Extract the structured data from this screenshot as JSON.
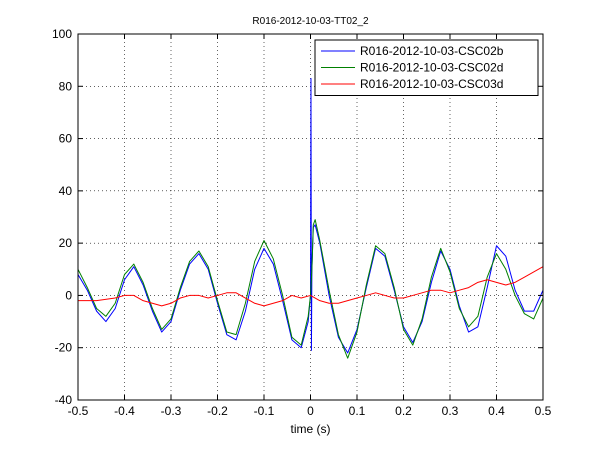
{
  "chart_data": {
    "type": "line",
    "title": "R016-2012-10-03-TT02_2",
    "xlabel": "time (s)",
    "ylabel": "",
    "xlim": [
      -0.5,
      0.5
    ],
    "ylim": [
      -40,
      100
    ],
    "x_ticks": [
      -0.5,
      -0.4,
      -0.3,
      -0.2,
      -0.1,
      0,
      0.1,
      0.2,
      0.3,
      0.4,
      0.5
    ],
    "x_tick_labels": [
      "-0.5",
      "-0.4",
      "-0.3",
      "-0.2",
      "-0.1",
      "0",
      "0.1",
      "0.2",
      "0.3",
      "0.4",
      "0.5"
    ],
    "y_ticks": [
      -40,
      -20,
      0,
      20,
      40,
      60,
      80,
      100
    ],
    "y_tick_labels": [
      "-40",
      "-20",
      "0",
      "20",
      "40",
      "60",
      "80",
      "100"
    ],
    "grid": true,
    "legend_position": "top-right",
    "series": [
      {
        "name": "R016-2012-10-03-CSC02b",
        "color": "#0000ff",
        "points": [
          [
            -0.5,
            8
          ],
          [
            -0.48,
            2
          ],
          [
            -0.46,
            -6
          ],
          [
            -0.44,
            -10
          ],
          [
            -0.42,
            -5
          ],
          [
            -0.4,
            6
          ],
          [
            -0.38,
            11
          ],
          [
            -0.36,
            4
          ],
          [
            -0.34,
            -6
          ],
          [
            -0.32,
            -14
          ],
          [
            -0.3,
            -10
          ],
          [
            -0.28,
            2
          ],
          [
            -0.26,
            12
          ],
          [
            -0.24,
            16
          ],
          [
            -0.22,
            10
          ],
          [
            -0.2,
            -3
          ],
          [
            -0.18,
            -15
          ],
          [
            -0.16,
            -17
          ],
          [
            -0.14,
            -6
          ],
          [
            -0.12,
            10
          ],
          [
            -0.1,
            18
          ],
          [
            -0.08,
            12
          ],
          [
            -0.06,
            -2
          ],
          [
            -0.04,
            -17
          ],
          [
            -0.02,
            -20
          ],
          [
            -0.005,
            -10
          ],
          [
            0.0,
            0
          ],
          [
            0.001,
            83
          ],
          [
            0.002,
            -21
          ],
          [
            0.003,
            10
          ],
          [
            0.006,
            26
          ],
          [
            0.01,
            27
          ],
          [
            0.02,
            20
          ],
          [
            0.04,
            0
          ],
          [
            0.06,
            -16
          ],
          [
            0.08,
            -22
          ],
          [
            0.1,
            -13
          ],
          [
            0.12,
            3
          ],
          [
            0.14,
            18
          ],
          [
            0.16,
            15
          ],
          [
            0.18,
            2
          ],
          [
            0.2,
            -12
          ],
          [
            0.22,
            -18
          ],
          [
            0.24,
            -10
          ],
          [
            0.26,
            5
          ],
          [
            0.28,
            17
          ],
          [
            0.3,
            10
          ],
          [
            0.32,
            -4
          ],
          [
            0.34,
            -14
          ],
          [
            0.36,
            -12
          ],
          [
            0.38,
            3
          ],
          [
            0.4,
            19
          ],
          [
            0.42,
            15
          ],
          [
            0.44,
            2
          ],
          [
            0.46,
            -6
          ],
          [
            0.48,
            -6
          ],
          [
            0.5,
            2
          ]
        ]
      },
      {
        "name": "R016-2012-10-03-CSC02d",
        "color": "#008000",
        "points": [
          [
            -0.5,
            10
          ],
          [
            -0.48,
            3
          ],
          [
            -0.46,
            -5
          ],
          [
            -0.44,
            -8
          ],
          [
            -0.42,
            -3
          ],
          [
            -0.4,
            8
          ],
          [
            -0.38,
            12
          ],
          [
            -0.36,
            5
          ],
          [
            -0.34,
            -5
          ],
          [
            -0.32,
            -13
          ],
          [
            -0.3,
            -9
          ],
          [
            -0.28,
            3
          ],
          [
            -0.26,
            13
          ],
          [
            -0.24,
            17
          ],
          [
            -0.22,
            11
          ],
          [
            -0.2,
            -2
          ],
          [
            -0.18,
            -14
          ],
          [
            -0.16,
            -15
          ],
          [
            -0.14,
            -3
          ],
          [
            -0.12,
            13
          ],
          [
            -0.1,
            21
          ],
          [
            -0.08,
            14
          ],
          [
            -0.06,
            0
          ],
          [
            -0.04,
            -16
          ],
          [
            -0.02,
            -19
          ],
          [
            -0.005,
            -8
          ],
          [
            0.0,
            0
          ],
          [
            0.003,
            10
          ],
          [
            0.006,
            27
          ],
          [
            0.01,
            29
          ],
          [
            0.02,
            21
          ],
          [
            0.04,
            2
          ],
          [
            0.06,
            -15
          ],
          [
            0.08,
            -24
          ],
          [
            0.1,
            -14
          ],
          [
            0.12,
            4
          ],
          [
            0.14,
            19
          ],
          [
            0.16,
            16
          ],
          [
            0.18,
            3
          ],
          [
            0.2,
            -13
          ],
          [
            0.22,
            -19
          ],
          [
            0.24,
            -9
          ],
          [
            0.26,
            7
          ],
          [
            0.28,
            18
          ],
          [
            0.3,
            9
          ],
          [
            0.32,
            -5
          ],
          [
            0.34,
            -12
          ],
          [
            0.36,
            -8
          ],
          [
            0.38,
            7
          ],
          [
            0.4,
            16
          ],
          [
            0.42,
            10
          ],
          [
            0.44,
            0
          ],
          [
            0.46,
            -7
          ],
          [
            0.48,
            -9
          ],
          [
            0.5,
            -1
          ]
        ]
      },
      {
        "name": "R016-2012-10-03-CSC03d",
        "color": "#ff0000",
        "points": [
          [
            -0.5,
            -2
          ],
          [
            -0.46,
            -2
          ],
          [
            -0.42,
            -1
          ],
          [
            -0.4,
            0
          ],
          [
            -0.38,
            0
          ],
          [
            -0.36,
            -2
          ],
          [
            -0.32,
            -4
          ],
          [
            -0.3,
            -3
          ],
          [
            -0.28,
            -1
          ],
          [
            -0.26,
            0
          ],
          [
            -0.24,
            0
          ],
          [
            -0.22,
            -1
          ],
          [
            -0.2,
            0
          ],
          [
            -0.18,
            1
          ],
          [
            -0.16,
            1
          ],
          [
            -0.14,
            -1
          ],
          [
            -0.12,
            -3
          ],
          [
            -0.1,
            -4
          ],
          [
            -0.08,
            -3
          ],
          [
            -0.06,
            -2
          ],
          [
            -0.04,
            0
          ],
          [
            -0.02,
            -1
          ],
          [
            0.0,
            0
          ],
          [
            0.02,
            -2
          ],
          [
            0.04,
            -3
          ],
          [
            0.06,
            -3
          ],
          [
            0.08,
            -2
          ],
          [
            0.1,
            -1
          ],
          [
            0.12,
            0
          ],
          [
            0.14,
            1
          ],
          [
            0.16,
            0
          ],
          [
            0.18,
            -1
          ],
          [
            0.2,
            -1
          ],
          [
            0.22,
            0
          ],
          [
            0.24,
            1
          ],
          [
            0.26,
            2
          ],
          [
            0.28,
            2
          ],
          [
            0.3,
            1
          ],
          [
            0.32,
            2
          ],
          [
            0.34,
            3
          ],
          [
            0.36,
            5
          ],
          [
            0.38,
            6
          ],
          [
            0.4,
            5
          ],
          [
            0.42,
            4
          ],
          [
            0.44,
            5
          ],
          [
            0.46,
            7
          ],
          [
            0.48,
            9
          ],
          [
            0.5,
            11
          ]
        ]
      }
    ]
  }
}
